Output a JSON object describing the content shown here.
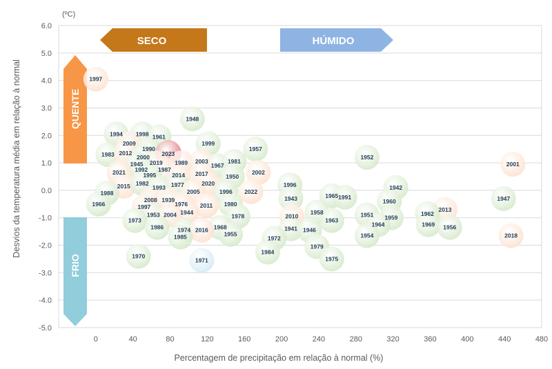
{
  "chart_data": {
    "type": "scatter",
    "title": "",
    "unit_label": "(ºC)",
    "xlabel": "Percentagem de precipitação em relação à normal (%)",
    "ylabel": "Desvios da temperatura média em relação à normal",
    "xlim": [
      -40,
      480
    ],
    "ylim": [
      -5,
      6
    ],
    "x_ticks": [
      0,
      40,
      80,
      120,
      160,
      200,
      240,
      280,
      320,
      360,
      400,
      440,
      480
    ],
    "y_ticks": [
      6.0,
      5.0,
      4.0,
      3.0,
      2.0,
      1.0,
      0.0,
      -1.0,
      -2.0,
      -3.0,
      -4.0,
      -5.0
    ],
    "y_tick_labels": [
      "6.0",
      "5.0",
      "4.0",
      "3.0",
      "2.0",
      "1.0",
      "0.0",
      "-1.0",
      "-2.0",
      "-3.0",
      "-4.0",
      "-5.0"
    ],
    "grid": "horizontal",
    "regions": {
      "dry": "SECO",
      "wet": "HÚMIDO",
      "hot": "QUENTE",
      "cold": "FRIO"
    },
    "colors": {
      "green": "#d4e8c8",
      "orange": "#fde0cc",
      "red": "#e06a73",
      "blue": "#d2eaf4",
      "seco": "#c5781a",
      "humido": "#8eb4e3",
      "quente": "#f79646",
      "frio": "#92cddc",
      "label_red": "#c00000"
    },
    "points": [
      {
        "label": "1997",
        "x": 0,
        "y": 4.05,
        "c": "orange",
        "t": "red"
      },
      {
        "label": "1948",
        "x": 104,
        "y": 2.6,
        "c": "green"
      },
      {
        "label": "1994",
        "x": 22,
        "y": 2.05,
        "c": "green"
      },
      {
        "label": "1998",
        "x": 50,
        "y": 2.05,
        "c": "green"
      },
      {
        "label": "1961",
        "x": 68,
        "y": 1.95,
        "c": "green"
      },
      {
        "label": "2009",
        "x": 36,
        "y": 1.7,
        "c": "orange"
      },
      {
        "label": "1999",
        "x": 121,
        "y": 1.7,
        "c": "green"
      },
      {
        "label": "1983",
        "x": 13,
        "y": 1.3,
        "c": "green"
      },
      {
        "label": "2012",
        "x": 32,
        "y": 1.35,
        "c": "orange"
      },
      {
        "label": "1990",
        "x": 57,
        "y": 1.5,
        "c": "green"
      },
      {
        "label": "2023",
        "x": 78,
        "y": 1.35,
        "c": "red",
        "t": "red",
        "big": true
      },
      {
        "label": "1957",
        "x": 172,
        "y": 1.5,
        "c": "green"
      },
      {
        "label": "1952",
        "x": 292,
        "y": 1.2,
        "c": "green"
      },
      {
        "label": "2001",
        "x": 449,
        "y": 0.95,
        "c": "orange"
      },
      {
        "label": "2000",
        "x": 51,
        "y": 1.2,
        "c": "green"
      },
      {
        "label": "2019",
        "x": 65,
        "y": 1.0,
        "c": "orange"
      },
      {
        "label": "1989",
        "x": 92,
        "y": 1.0,
        "c": "orange"
      },
      {
        "label": "2003",
        "x": 114,
        "y": 1.05,
        "c": "orange"
      },
      {
        "label": "1967",
        "x": 131,
        "y": 0.9,
        "c": "green"
      },
      {
        "label": "1981",
        "x": 149,
        "y": 1.05,
        "c": "green"
      },
      {
        "label": "1945",
        "x": 44,
        "y": 0.95,
        "c": "green"
      },
      {
        "label": "1992",
        "x": 49,
        "y": 0.75,
        "c": "green"
      },
      {
        "label": "1987",
        "x": 74,
        "y": 0.75,
        "c": "orange"
      },
      {
        "label": "2021",
        "x": 25,
        "y": 0.65,
        "c": "orange"
      },
      {
        "label": "1995",
        "x": 58,
        "y": 0.55,
        "c": "green"
      },
      {
        "label": "2014",
        "x": 89,
        "y": 0.55,
        "c": "orange"
      },
      {
        "label": "2017",
        "x": 114,
        "y": 0.6,
        "c": "orange"
      },
      {
        "label": "1950",
        "x": 147,
        "y": 0.5,
        "c": "green"
      },
      {
        "label": "2002",
        "x": 175,
        "y": 0.65,
        "c": "orange"
      },
      {
        "label": "2015",
        "x": 30,
        "y": 0.15,
        "c": "orange"
      },
      {
        "label": "1982",
        "x": 50,
        "y": 0.25,
        "c": "green"
      },
      {
        "label": "1993",
        "x": 68,
        "y": 0.1,
        "c": "green"
      },
      {
        "label": "1977",
        "x": 88,
        "y": 0.2,
        "c": "green"
      },
      {
        "label": "2020",
        "x": 121,
        "y": 0.25,
        "c": "orange"
      },
      {
        "label": "1996",
        "x": 209,
        "y": 0.2,
        "c": "green"
      },
      {
        "label": "1942",
        "x": 323,
        "y": 0.1,
        "c": "green"
      },
      {
        "label": "1988",
        "x": 12,
        "y": -0.1,
        "c": "green"
      },
      {
        "label": "2005",
        "x": 105,
        "y": -0.05,
        "c": "orange"
      },
      {
        "label": "1996",
        "x": 140,
        "y": -0.05,
        "c": "green"
      },
      {
        "label": "2022",
        "x": 167,
        "y": -0.05,
        "c": "orange"
      },
      {
        "label": "1965",
        "x": 254,
        "y": -0.2,
        "c": "green"
      },
      {
        "label": "1991",
        "x": 268,
        "y": -0.25,
        "c": "green"
      },
      {
        "label": "1943",
        "x": 210,
        "y": -0.3,
        "c": "green"
      },
      {
        "label": "1947",
        "x": 439,
        "y": -0.3,
        "c": "green"
      },
      {
        "label": "1966",
        "x": 3,
        "y": -0.5,
        "c": "green"
      },
      {
        "label": "2008",
        "x": 59,
        "y": -0.35,
        "c": "orange"
      },
      {
        "label": "1939",
        "x": 78,
        "y": -0.35,
        "c": "orange"
      },
      {
        "label": "1997",
        "x": 52,
        "y": -0.6,
        "c": "orange"
      },
      {
        "label": "1976",
        "x": 92,
        "y": -0.5,
        "c": "orange"
      },
      {
        "label": "2011",
        "x": 119,
        "y": -0.55,
        "c": "orange"
      },
      {
        "label": "1980",
        "x": 145,
        "y": -0.5,
        "c": "green"
      },
      {
        "label": "1960",
        "x": 316,
        "y": -0.4,
        "c": "green"
      },
      {
        "label": "2013",
        "x": 376,
        "y": -0.7,
        "c": "orange"
      },
      {
        "label": "1944",
        "x": 98,
        "y": -0.8,
        "c": "orange"
      },
      {
        "label": "1953",
        "x": 62,
        "y": -0.9,
        "c": "green"
      },
      {
        "label": "2004",
        "x": 80,
        "y": -0.9,
        "c": "orange"
      },
      {
        "label": "1958",
        "x": 238,
        "y": -0.8,
        "c": "green"
      },
      {
        "label": "1978",
        "x": 153,
        "y": -0.95,
        "c": "green"
      },
      {
        "label": "1962",
        "x": 357,
        "y": -0.85,
        "c": "green"
      },
      {
        "label": "1951",
        "x": 292,
        "y": -0.9,
        "c": "green"
      },
      {
        "label": "1959",
        "x": 318,
        "y": -1.0,
        "c": "green"
      },
      {
        "label": "2010",
        "x": 211,
        "y": -0.95,
        "c": "orange"
      },
      {
        "label": "1963",
        "x": 254,
        "y": -1.1,
        "c": "green"
      },
      {
        "label": "1973",
        "x": 42,
        "y": -1.1,
        "c": "green"
      },
      {
        "label": "1964",
        "x": 304,
        "y": -1.25,
        "c": "green"
      },
      {
        "label": "1969",
        "x": 358,
        "y": -1.25,
        "c": "green"
      },
      {
        "label": "1956",
        "x": 381,
        "y": -1.35,
        "c": "green"
      },
      {
        "label": "1986",
        "x": 66,
        "y": -1.35,
        "c": "green"
      },
      {
        "label": "1968",
        "x": 134,
        "y": -1.35,
        "c": "green"
      },
      {
        "label": "1941",
        "x": 210,
        "y": -1.4,
        "c": "green"
      },
      {
        "label": "1946",
        "x": 230,
        "y": -1.45,
        "c": "green"
      },
      {
        "label": "1974",
        "x": 95,
        "y": -1.45,
        "c": "green"
      },
      {
        "label": "2016",
        "x": 114,
        "y": -1.45,
        "c": "orange"
      },
      {
        "label": "1955",
        "x": 145,
        "y": -1.6,
        "c": "green"
      },
      {
        "label": "1954",
        "x": 292,
        "y": -1.65,
        "c": "green"
      },
      {
        "label": "2018",
        "x": 447,
        "y": -1.65,
        "c": "orange"
      },
      {
        "label": "1985",
        "x": 91,
        "y": -1.7,
        "c": "green"
      },
      {
        "label": "1972",
        "x": 192,
        "y": -1.75,
        "c": "green"
      },
      {
        "label": "1979",
        "x": 238,
        "y": -2.05,
        "c": "green"
      },
      {
        "label": "1984",
        "x": 185,
        "y": -2.25,
        "c": "green"
      },
      {
        "label": "1970",
        "x": 46,
        "y": -2.4,
        "c": "green"
      },
      {
        "label": "1975",
        "x": 254,
        "y": -2.5,
        "c": "green"
      },
      {
        "label": "1971",
        "x": 114,
        "y": -2.55,
        "c": "blue"
      }
    ]
  }
}
